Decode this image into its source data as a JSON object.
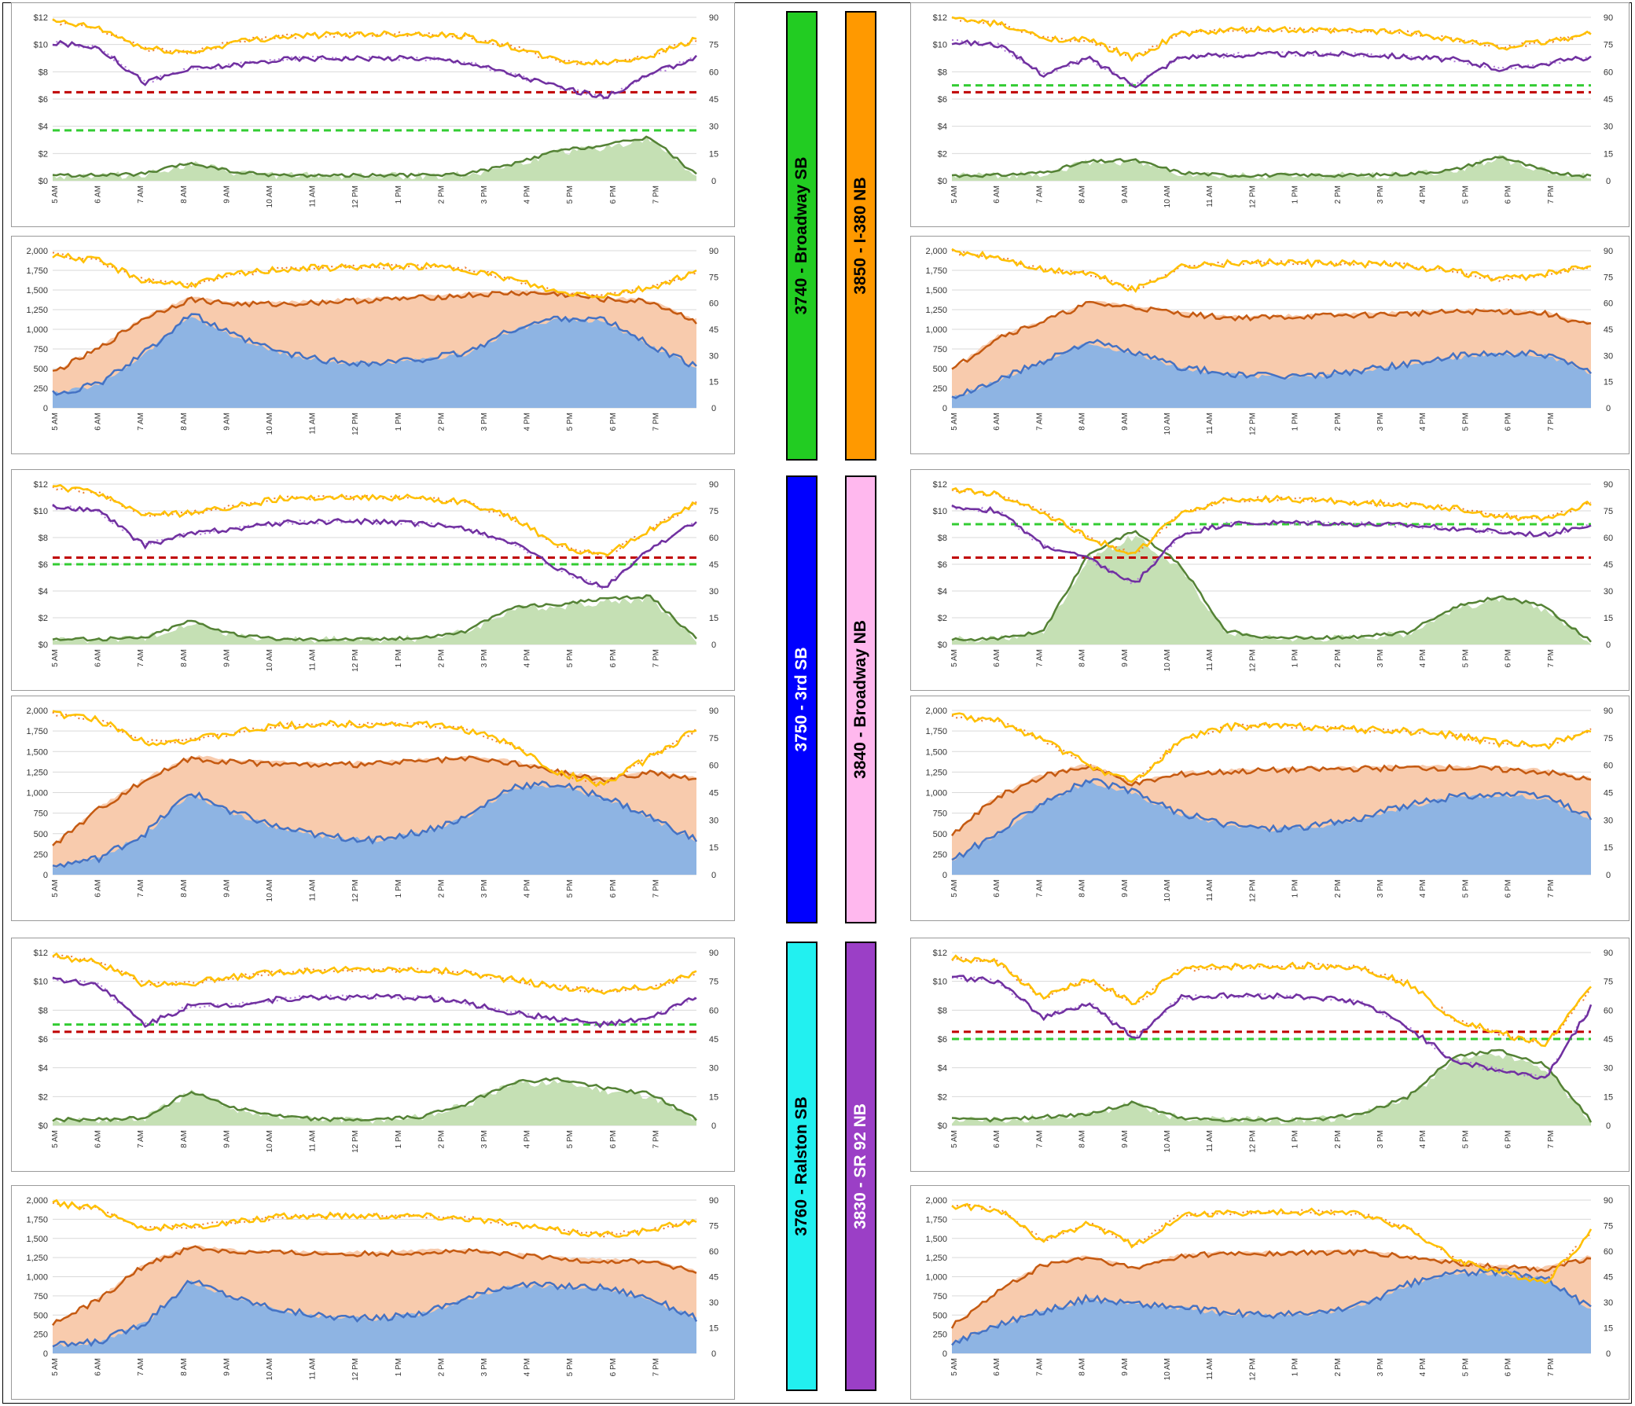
{
  "common": {
    "time_ticks": [
      "5 AM",
      "6 AM",
      "7 AM",
      "8 AM",
      "9 AM",
      "10 AM",
      "11 AM",
      "12 PM",
      "1 PM",
      "2 PM",
      "3 PM",
      "4 PM",
      "5 PM",
      "6 PM",
      "7 PM"
    ],
    "price_ticks": [
      "$0",
      "$2",
      "$4",
      "$6",
      "$8",
      "$10",
      "$12"
    ],
    "volume_ticks": [
      "0",
      "250",
      "500",
      "750",
      "1,000",
      "1,250",
      "1,500",
      "1,750",
      "2,000"
    ],
    "speed_ticks": [
      "0",
      "15",
      "30",
      "45",
      "60",
      "75",
      "90"
    ]
  },
  "colors": {
    "speed_today": "#ffc000",
    "speed_typical": "#ed7d31",
    "speed_gp": "#7030a0",
    "speed_gp_typical": "#b07ad8",
    "toll": "#548235",
    "toll_area": "#c5e0b4",
    "volume_gp": "#c55a11",
    "volume_gp_area": "#f8cbad",
    "volume_hot": "#4472c4",
    "volume_hot_area": "#8eb4e3",
    "threshold_red": "#c00000",
    "threshold_green": "#33cc33"
  },
  "segments": [
    {
      "id": "3740",
      "name": "3740 - Broadway SB",
      "color": "#22cc22",
      "text_color": "#000000",
      "min_toll": 3.7
    },
    {
      "id": "3850",
      "name": "3850 - I-380 NB",
      "color": "#ff9900",
      "text_color": "#000000",
      "min_toll": 7
    },
    {
      "id": "3750",
      "name": "3750 - 3rd SB",
      "color": "#0000ff",
      "text_color": "#ffffff",
      "min_toll": 6
    },
    {
      "id": "3840",
      "name": "3840 - Broadway NB",
      "color": "#ffb8ee",
      "text_color": "#000000",
      "min_toll": 9
    },
    {
      "id": "3760",
      "name": "3760 - Ralston SB",
      "color": "#22f0f0",
      "text_color": "#000000",
      "min_toll": 7
    },
    {
      "id": "3830",
      "name": "3830 - SR 92 NB",
      "color": "#9b3fc6",
      "text_color": "#ffffff",
      "min_toll": 6
    }
  ],
  "chart_data": [
    {
      "type": "line",
      "segment": "3740 - Broadway SB",
      "panel": "speed-toll",
      "x": [
        "5 AM",
        "6 AM",
        "7 AM",
        "8 AM",
        "9 AM",
        "10 AM",
        "11 AM",
        "12 PM",
        "1 PM",
        "2 PM",
        "3 PM",
        "4 PM",
        "5 PM",
        "6 PM",
        "7 PM"
      ],
      "ylim": [
        0,
        12
      ],
      "y2lim": [
        0,
        90
      ],
      "series": [
        {
          "values": [
            11.7,
            11.2,
            9.7,
            9.4,
            10.2,
            10.6,
            10.7,
            10.8,
            10.8,
            10.6,
            9.8,
            8.8,
            8.6,
            9.2,
            10.4
          ]
        },
        {
          "values": [
            10.1,
            9.8,
            7.2,
            8.2,
            8.5,
            8.9,
            9.0,
            9.0,
            9.0,
            8.7,
            7.8,
            6.9,
            6.1,
            7.8,
            9.1
          ]
        },
        {
          "values": [
            0.4,
            0.4,
            0.5,
            1.3,
            0.6,
            0.4,
            0.4,
            0.4,
            0.4,
            0.5,
            1.2,
            2.2,
            2.6,
            3.2,
            0.4
          ]
        }
      ]
    },
    {
      "type": "area",
      "segment": "3740 - Broadway SB",
      "panel": "volume-speed",
      "ylim": [
        0,
        2000
      ],
      "y2lim": [
        0,
        90
      ],
      "series": [
        {
          "values": [
            450,
            750,
            1150,
            1380,
            1320,
            1320,
            1350,
            1370,
            1400,
            1430,
            1460,
            1450,
            1380,
            1350,
            1100
          ]
        },
        {
          "values": [
            180,
            300,
            700,
            1200,
            900,
            700,
            600,
            560,
            620,
            700,
            1000,
            1150,
            1120,
            800,
            520
          ]
        }
      ]
    },
    {
      "type": "line",
      "segment": "3850 - I-380 NB",
      "panel": "speed-toll",
      "ylim": [
        0,
        12
      ],
      "y2lim": [
        0,
        90
      ],
      "series": [
        {
          "values": [
            11.9,
            11.5,
            10.5,
            10.3,
            9.0,
            10.8,
            11.0,
            11.1,
            11.0,
            11.0,
            10.9,
            10.4,
            9.8,
            10.2,
            10.8
          ]
        },
        {
          "values": [
            10.2,
            10.0,
            7.8,
            9.0,
            7.0,
            9.1,
            9.2,
            9.3,
            9.3,
            9.3,
            9.1,
            8.9,
            8.2,
            8.6,
            9.1
          ]
        },
        {
          "values": [
            0.4,
            0.4,
            0.6,
            1.4,
            1.5,
            0.6,
            0.4,
            0.4,
            0.4,
            0.4,
            0.5,
            0.8,
            1.8,
            0.7,
            0.3
          ]
        }
      ]
    },
    {
      "type": "area",
      "segment": "3850 - I-380 NB",
      "panel": "volume-speed",
      "ylim": [
        0,
        2000
      ],
      "y2lim": [
        0,
        90
      ],
      "series": [
        {
          "values": [
            480,
            900,
            1100,
            1330,
            1280,
            1200,
            1150,
            1150,
            1170,
            1180,
            1200,
            1220,
            1230,
            1200,
            1050
          ]
        },
        {
          "values": [
            120,
            350,
            600,
            850,
            700,
            520,
            430,
            400,
            410,
            480,
            560,
            650,
            700,
            680,
            440
          ]
        }
      ]
    },
    {
      "type": "line",
      "segment": "3750 - 3rd SB",
      "panel": "speed-toll",
      "ylim": [
        0,
        12
      ],
      "y2lim": [
        0,
        90
      ],
      "series": [
        {
          "values": [
            11.8,
            11.3,
            9.7,
            9.8,
            10.4,
            10.9,
            11.0,
            11.0,
            11.0,
            10.6,
            9.5,
            7.4,
            6.6,
            8.6,
            10.6
          ]
        },
        {
          "values": [
            10.3,
            10.0,
            7.4,
            8.3,
            8.7,
            9.1,
            9.2,
            9.2,
            9.0,
            8.7,
            7.6,
            5.6,
            4.2,
            7.2,
            9.2
          ]
        },
        {
          "values": [
            0.4,
            0.4,
            0.5,
            1.8,
            0.7,
            0.4,
            0.4,
            0.4,
            0.5,
            1.0,
            2.8,
            3.0,
            3.4,
            3.6,
            0.4
          ]
        }
      ]
    },
    {
      "type": "area",
      "segment": "3750 - 3rd SB",
      "panel": "volume-speed",
      "ylim": [
        0,
        2000
      ],
      "y2lim": [
        0,
        90
      ],
      "series": [
        {
          "values": [
            350,
            800,
            1150,
            1420,
            1370,
            1350,
            1330,
            1350,
            1380,
            1410,
            1360,
            1250,
            1150,
            1250,
            1150
          ]
        },
        {
          "values": [
            100,
            200,
            500,
            1000,
            750,
            560,
            460,
            430,
            520,
            700,
            1080,
            1100,
            950,
            700,
            420
          ]
        }
      ]
    },
    {
      "type": "line",
      "segment": "3840 - Broadway NB",
      "panel": "speed-toll",
      "ylim": [
        0,
        12
      ],
      "y2lim": [
        0,
        90
      ],
      "series": [
        {
          "values": [
            11.6,
            11.2,
            9.9,
            8.0,
            6.7,
            9.8,
            10.8,
            10.9,
            10.8,
            10.6,
            10.5,
            10.2,
            9.6,
            9.4,
            10.6
          ]
        },
        {
          "values": [
            10.3,
            10.0,
            7.4,
            6.4,
            4.5,
            8.2,
            9.0,
            9.1,
            9.1,
            9.0,
            8.9,
            8.7,
            8.4,
            8.2,
            9.0
          ]
        },
        {
          "values": [
            0.4,
            0.4,
            1.0,
            6.8,
            8.5,
            6.0,
            1.0,
            0.5,
            0.5,
            0.6,
            0.9,
            2.8,
            3.6,
            2.8,
            0.2
          ]
        }
      ]
    },
    {
      "type": "area",
      "segment": "3840 - Broadway NB",
      "panel": "volume-speed",
      "ylim": [
        0,
        2000
      ],
      "y2lim": [
        0,
        90
      ],
      "series": [
        {
          "values": [
            480,
            950,
            1200,
            1320,
            1100,
            1220,
            1250,
            1270,
            1280,
            1290,
            1300,
            1300,
            1280,
            1250,
            1150
          ]
        },
        {
          "values": [
            180,
            500,
            900,
            1150,
            1000,
            750,
            620,
            560,
            600,
            700,
            850,
            950,
            980,
            950,
            700
          ]
        }
      ]
    },
    {
      "type": "line",
      "segment": "3760 - Ralston SB",
      "panel": "speed-toll",
      "ylim": [
        0,
        12
      ],
      "y2lim": [
        0,
        90
      ],
      "series": [
        {
          "values": [
            11.8,
            11.3,
            9.8,
            9.9,
            10.3,
            10.7,
            10.8,
            10.8,
            10.8,
            10.6,
            10.1,
            9.6,
            9.3,
            9.6,
            10.5
          ]
        },
        {
          "values": [
            10.2,
            9.8,
            7.0,
            8.3,
            8.4,
            8.8,
            8.9,
            8.9,
            8.9,
            8.5,
            7.8,
            7.4,
            7.0,
            7.4,
            9.0
          ]
        },
        {
          "values": [
            0.4,
            0.4,
            0.5,
            2.4,
            1.2,
            0.6,
            0.4,
            0.4,
            0.6,
            1.5,
            3.0,
            3.2,
            2.6,
            2.2,
            0.4
          ]
        }
      ]
    },
    {
      "type": "area",
      "segment": "3760 - Ralston SB",
      "panel": "volume-speed",
      "ylim": [
        0,
        2000
      ],
      "y2lim": [
        0,
        90
      ],
      "series": [
        {
          "values": [
            380,
            700,
            1150,
            1380,
            1320,
            1310,
            1300,
            1300,
            1320,
            1330,
            1280,
            1230,
            1200,
            1200,
            1050
          ]
        },
        {
          "values": [
            100,
            150,
            400,
            950,
            720,
            560,
            480,
            450,
            520,
            720,
            900,
            880,
            860,
            720,
            460
          ]
        }
      ]
    },
    {
      "type": "line",
      "segment": "3830 - SR 92 NB",
      "panel": "speed-toll",
      "ylim": [
        0,
        12
      ],
      "y2lim": [
        0,
        90
      ],
      "series": [
        {
          "values": [
            11.6,
            11.3,
            8.8,
            10.2,
            8.4,
            10.8,
            11.0,
            11.0,
            11.1,
            10.9,
            9.8,
            7.4,
            6.4,
            5.6,
            9.5
          ]
        },
        {
          "values": [
            10.3,
            10.0,
            7.5,
            8.5,
            6.0,
            8.9,
            9.0,
            9.0,
            8.9,
            8.5,
            6.8,
            4.5,
            3.8,
            3.3,
            8.2
          ]
        },
        {
          "values": [
            0.4,
            0.4,
            0.6,
            0.8,
            1.6,
            0.5,
            0.4,
            0.4,
            0.4,
            0.8,
            2.0,
            4.8,
            5.2,
            4.2,
            0.3
          ]
        }
      ]
    },
    {
      "type": "area",
      "segment": "3830 - SR 92 NB",
      "panel": "volume-speed",
      "ylim": [
        0,
        2000
      ],
      "y2lim": [
        0,
        90
      ],
      "series": [
        {
          "values": [
            350,
            800,
            1150,
            1250,
            1100,
            1270,
            1300,
            1300,
            1310,
            1320,
            1250,
            1180,
            1120,
            1100,
            1250
          ]
        },
        {
          "values": [
            130,
            380,
            550,
            720,
            650,
            600,
            530,
            500,
            520,
            640,
            900,
            1060,
            1050,
            1000,
            580
          ]
        }
      ]
    }
  ]
}
